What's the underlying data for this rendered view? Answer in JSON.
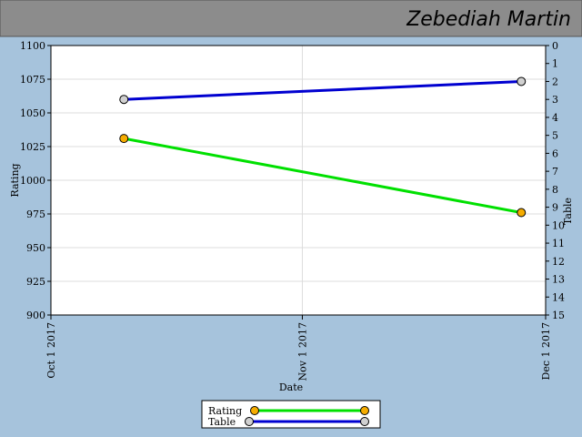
{
  "chart_data": {
    "type": "line",
    "title": "Zebediah Martin",
    "x_label": "Date",
    "y_label": "Rating",
    "y2_label": "Table",
    "x": [
      "2017-10-10",
      "2017-11-28"
    ],
    "xlim": [
      "2017-10-01",
      "2017-12-01"
    ],
    "xticks": [
      {
        "value": "2017-10-01",
        "label": "Oct 1 2017"
      },
      {
        "value": "2017-11-01",
        "label": "Nov 1 2017"
      },
      {
        "value": "2017-12-01",
        "label": "Dec 1 2017"
      }
    ],
    "ylim": [
      900,
      1100
    ],
    "yticks": [
      900,
      925,
      950,
      975,
      1000,
      1025,
      1050,
      1075,
      1100
    ],
    "y2lim": [
      15,
      0
    ],
    "y2ticks": [
      0,
      1,
      2,
      3,
      4,
      5,
      6,
      7,
      8,
      9,
      10,
      11,
      12,
      13,
      14,
      15
    ],
    "grid": true,
    "series": [
      {
        "name": "Rating",
        "color": "#00e000",
        "marker_color": "#f5ac00",
        "values": [
          1031,
          976
        ]
      },
      {
        "name": "Table",
        "color": "#0000d0",
        "marker_color": "#d0d0d0",
        "axis": "y2",
        "values": [
          3,
          2
        ]
      }
    ]
  }
}
